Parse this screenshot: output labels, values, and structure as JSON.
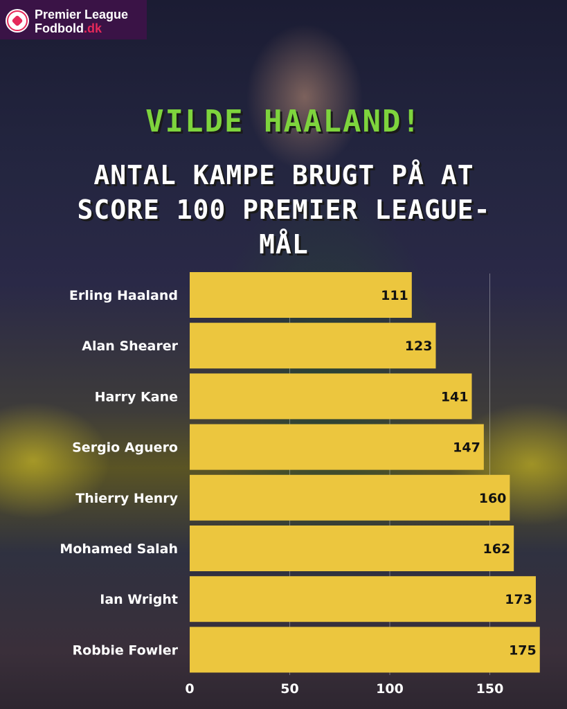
{
  "logo": {
    "line1": "Premier League",
    "line2_main": "Fodbold",
    "line2_suffix": ".dk",
    "icon": "football-icon",
    "accent_color": "#e5295a",
    "background_color": "#3a1346"
  },
  "colors": {
    "title": "#7ed43d",
    "bar": "#ecc63e"
  },
  "chart_data": {
    "type": "bar",
    "orientation": "horizontal",
    "title": "Vilde Haaland!",
    "subtitle": "Antal kampe brugt på at score 100 Premier League-mål",
    "categories": [
      "Erling Haaland",
      "Alan Shearer",
      "Harry Kane",
      "Sergio Aguero",
      "Thierry Henry",
      "Mohamed Salah",
      "Ian Wright",
      "Robbie Fowler"
    ],
    "values": [
      111,
      123,
      141,
      147,
      160,
      162,
      173,
      175
    ],
    "x_ticks": [
      0,
      50,
      100,
      150
    ],
    "xlim": [
      0,
      175
    ],
    "grid": true
  }
}
